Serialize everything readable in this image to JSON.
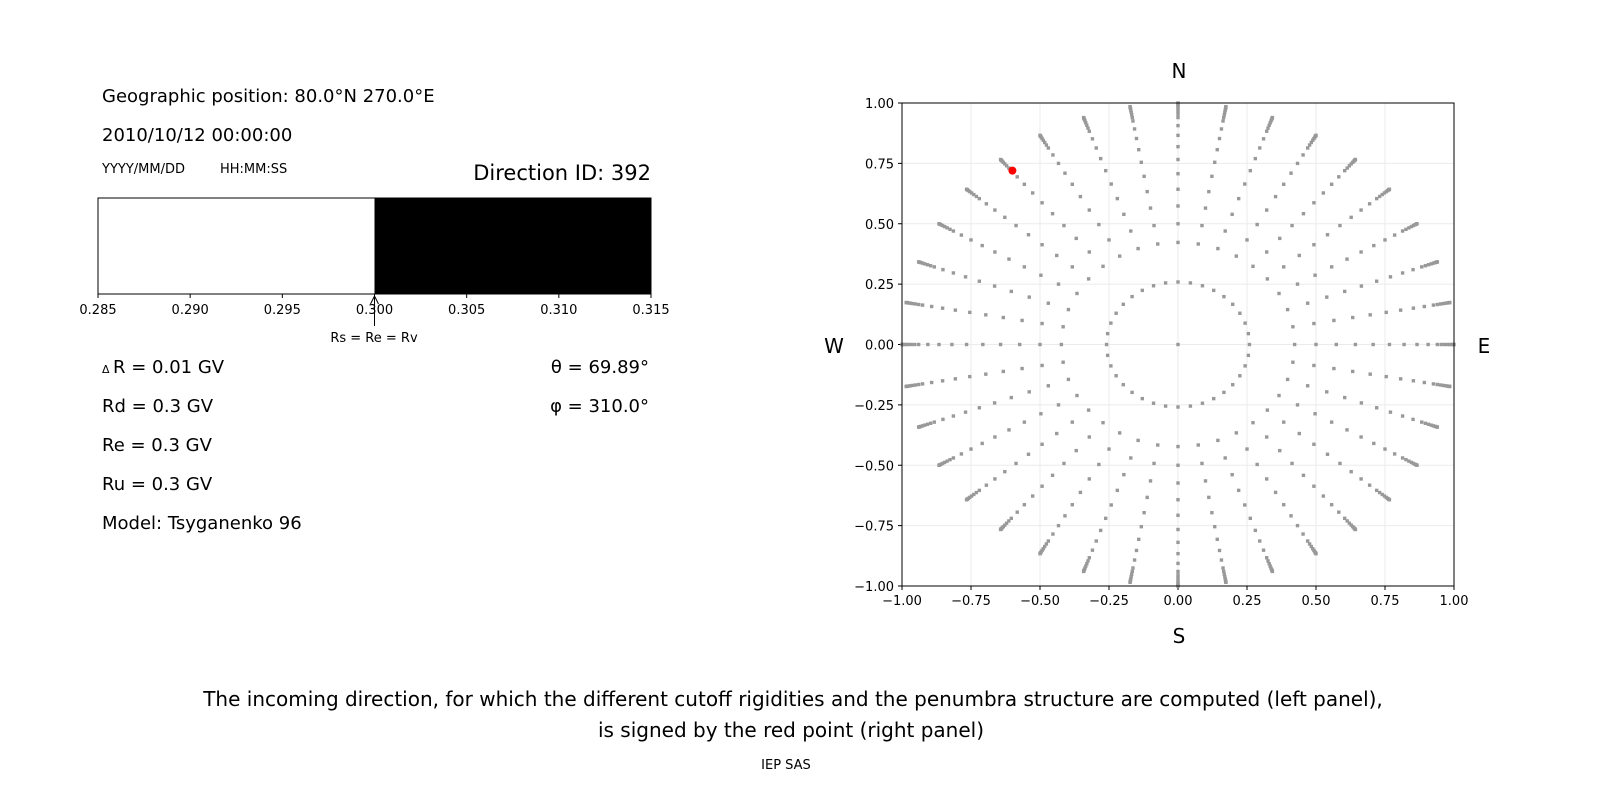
{
  "info": {
    "position": "Geographic position: 80.0°N 270.0°E",
    "datetime": "2010/10/12 00:00:00",
    "date_format": "YYYY/MM/DD",
    "time_format": "HH:MM:SS",
    "direction_id": "Direction ID: 392",
    "delta_r": "R = 0.01 GV",
    "delta_symbol": "Δ",
    "rd": "Rd = 0.3 GV",
    "re": "Re = 0.3 GV",
    "ru": "Ru = 0.3 GV",
    "model": "Model: Tsyganenko 96",
    "theta": "θ = 69.89°",
    "phi": "φ = 310.0°"
  },
  "caption": {
    "line1": "The incoming direction, for which the different cutoff rigidities and the penumbra structure are computed (left panel),",
    "line2": "is signed by the red point (right panel)",
    "credit": "IEP SAS"
  },
  "chart_data": [
    {
      "type": "bar",
      "title": "",
      "xlim": [
        0.285,
        0.315
      ],
      "xticks": [
        "0.285",
        "0.290",
        "0.295",
        "0.300",
        "0.305",
        "0.310",
        "0.315"
      ],
      "segments": [
        {
          "from": 0.285,
          "to": 0.3,
          "color": "#ffffff"
        },
        {
          "from": 0.3,
          "to": 0.315,
          "color": "#000000"
        }
      ],
      "annotation": {
        "text": "Rs = Re = Rv",
        "x": 0.3
      }
    },
    {
      "type": "scatter",
      "xlim": [
        -1,
        1
      ],
      "ylim": [
        -1,
        1
      ],
      "grid": true,
      "xticks": [
        "−1.00",
        "−0.75",
        "−0.50",
        "−0.25",
        "0.00",
        "0.25",
        "0.50",
        "0.75",
        "1.00"
      ],
      "yticks": [
        "−1.00",
        "−0.75",
        "−0.50",
        "−0.25",
        "0.00",
        "0.25",
        "0.50",
        "0.75",
        "1.00"
      ],
      "compass": {
        "north": "N",
        "south": "S",
        "east": "E",
        "west": "W"
      },
      "directions": {
        "azimuth_step_deg": 10,
        "zenith_deg": [
          0,
          15,
          25,
          30,
          35,
          40,
          45,
          50,
          55,
          60,
          65,
          70,
          72.5,
          75,
          77.5,
          80,
          82.5,
          85,
          87.5,
          90
        ],
        "color": "#999999"
      },
      "selected": {
        "x": -0.6,
        "y": 0.72,
        "color": "#ff0000"
      }
    }
  ]
}
